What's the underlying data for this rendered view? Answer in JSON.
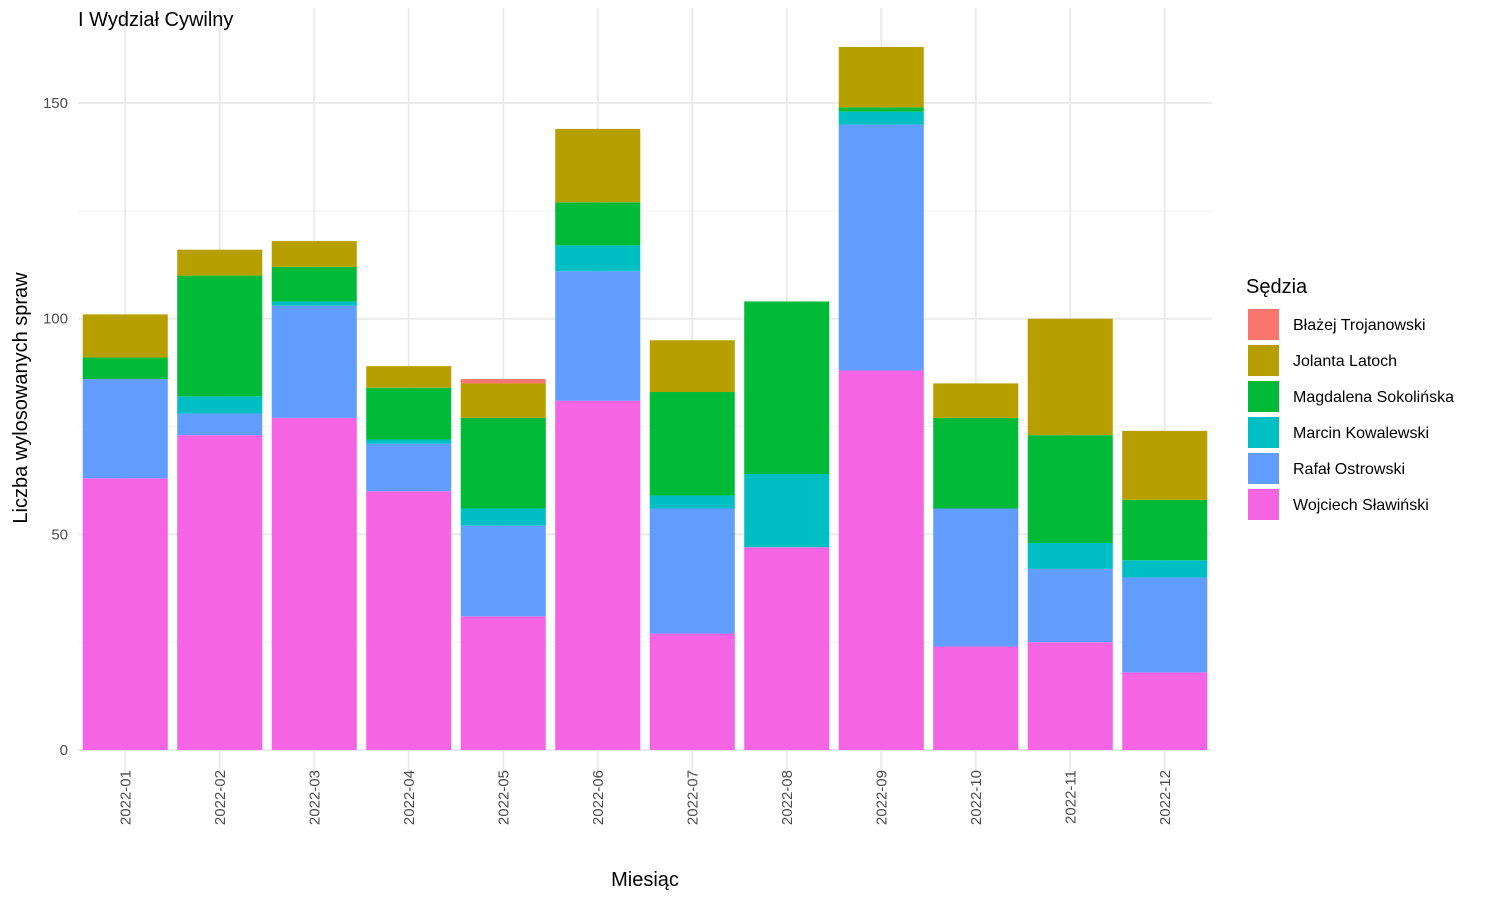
{
  "chart_data": {
    "type": "bar",
    "stacked": true,
    "title": "I Wydział Cywilny",
    "xlabel": "Miesiąc",
    "ylabel": "Liczba wylosowanych spraw",
    "ylim": [
      0,
      165
    ],
    "yticks": [
      0,
      50,
      100,
      150
    ],
    "grid": true,
    "legend_position": "right",
    "legend_title": "Sędzia",
    "categories": [
      "2022-01",
      "2022-02",
      "2022-03",
      "2022-04",
      "2022-05",
      "2022-06",
      "2022-07",
      "2022-08",
      "2022-09",
      "2022-10",
      "2022-11",
      "2022-12"
    ],
    "series": [
      {
        "name": "Błażej Trojanowski",
        "color": "#F8766D",
        "values": [
          0,
          0,
          0,
          0,
          1,
          0,
          0,
          0,
          0,
          0,
          0,
          0
        ]
      },
      {
        "name": "Jolanta Latoch",
        "color": "#B79F00",
        "values": [
          10,
          6,
          6,
          5,
          8,
          17,
          12,
          0,
          14,
          8,
          27,
          16
        ]
      },
      {
        "name": "Magdalena Sokolińska",
        "color": "#00BA38",
        "values": [
          5,
          28,
          8,
          12,
          21,
          10,
          24,
          40,
          1,
          21,
          25,
          14
        ]
      },
      {
        "name": "Marcin Kowalewski",
        "color": "#00BFC4",
        "values": [
          0,
          4,
          1,
          1,
          4,
          6,
          3,
          17,
          3,
          0,
          6,
          4
        ]
      },
      {
        "name": "Rafał Ostrowski",
        "color": "#619CFF",
        "values": [
          23,
          5,
          26,
          11,
          21,
          30,
          29,
          0,
          57,
          32,
          17,
          22
        ]
      },
      {
        "name": "Wojciech Sławiński",
        "color": "#F564E3",
        "values": [
          63,
          73,
          77,
          60,
          31,
          81,
          27,
          47,
          88,
          24,
          25,
          18
        ]
      }
    ]
  }
}
